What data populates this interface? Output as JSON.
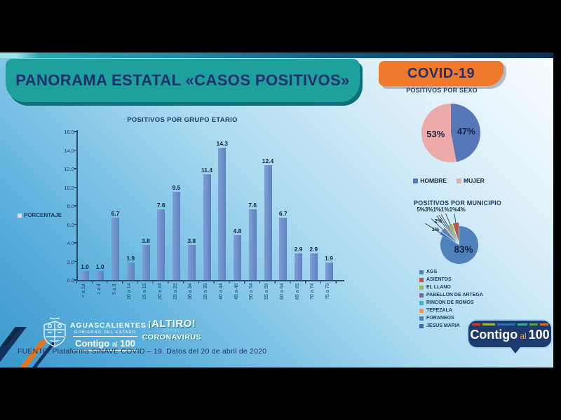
{
  "header": {
    "main_title": "PANORAMA ESTATAL «CASOS POSITIVOS»",
    "covid_title": "COVID-19"
  },
  "chart_data": [
    {
      "id": "grupo_etario",
      "type": "bar",
      "title": "POSITIVOS POR GRUPO ETARIO",
      "ylabel": "PORCENTAJE",
      "ylim": [
        0,
        16
      ],
      "yticks": [
        "0.0",
        "2.0",
        "4.0",
        "6.0",
        "8.0",
        "10.0",
        "12.0",
        "14.0",
        "16.0"
      ],
      "grid": false,
      "legend_position": "left",
      "bar_color": "#6d8fca",
      "legend_marker_color": "#e6d7ea",
      "categories": [
        "< a 1a",
        "1 a 4",
        "5 a 9",
        "10 a 14",
        "15 a 19",
        "20 a 24",
        "25 a 29",
        "30 a 34",
        "35 a 39",
        "40 a 44",
        "45 a 49",
        "50 a 54",
        "55 a 59",
        "60 a 64",
        "65 a 69",
        "70 a 74",
        "75 a 79"
      ],
      "values": [
        1.0,
        1.0,
        6.7,
        1.9,
        3.8,
        7.6,
        9.5,
        3.8,
        11.4,
        14.3,
        4.8,
        7.6,
        12.4,
        6.7,
        2.9,
        2.9,
        1.9
      ]
    },
    {
      "id": "sexo",
      "type": "pie",
      "title": "POSITIVOS POR SEXO",
      "labels": [
        "HOMBRE",
        "MUJER"
      ],
      "values": [
        47,
        53
      ],
      "value_labels": [
        "47%",
        "53%"
      ],
      "colors": [
        "#5678bb",
        "#edaaa8"
      ],
      "legend_position": "bottom"
    },
    {
      "id": "municipio",
      "type": "pie",
      "title": "POSITIVOS POR MUNICIPIO",
      "labels": [
        "AGS",
        "ASIENTOS",
        "EL LLANO",
        "PABELLON DE ARTEGA",
        "RINCON DE ROMOS",
        "TEPEZALA",
        "FORANEOS",
        "JESUS MARIA"
      ],
      "values": [
        83,
        5,
        3,
        1,
        1,
        1,
        4,
        2
      ],
      "colors": [
        "#4f81bd",
        "#c0504d",
        "#9bbb59",
        "#8064a2",
        "#4bacc6",
        "#f79646",
        "#5a7fbf",
        "#3f69a8"
      ],
      "big_slice_label": "83%",
      "small_labels_top": "5%3%1%1%1%4%",
      "small_labels_left": [
        "2%",
        "1%"
      ],
      "legend_position": "bottom"
    }
  ],
  "footer": {
    "gov_name": "AGUASCALIENTES",
    "gov_sub": "GOBIERNO DEL ESTADO",
    "contigo": "Contigo",
    "al": "al",
    "hundred": "100",
    "altiro_title": "¡ALTIRO!",
    "altiro_sub": "CON EL",
    "altiro_bottom": "CORONAVIRUS",
    "source": "FUENTE. Plataforma SINAVE COVID – 19. Datos del 20 de abril de 2020",
    "bubble_dash_colors": [
      "#c7432f",
      "#9db83c",
      "#2f6db5",
      "#3aa893",
      "#55a546",
      "#d4702f"
    ],
    "bubble_dash_widths": [
      12,
      18,
      26,
      14,
      12,
      12
    ]
  }
}
